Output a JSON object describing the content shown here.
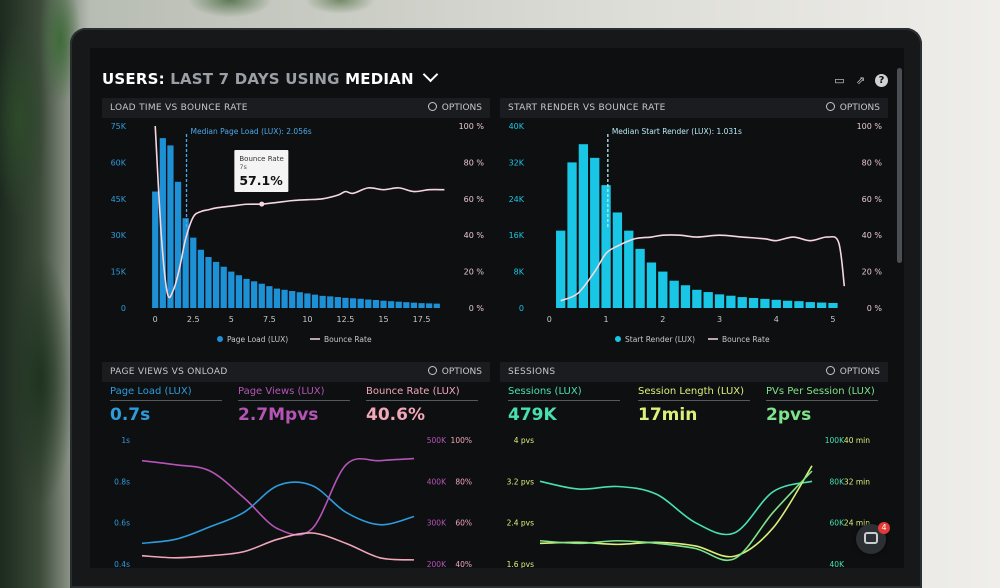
{
  "header": {
    "prefix": "USERS:",
    "range": "LAST 7 DAYS",
    "using": "USING",
    "stat": "MEDIAN"
  },
  "options_label": "OPTIONS",
  "colors": {
    "bar": "#1e90d6",
    "bar_cyan": "#19c6e6",
    "bounce_line": "#f7d7df",
    "median_line": "#4aa8e8"
  },
  "panels": {
    "load_time": {
      "title": "LOAD TIME VS BOUNCE RATE",
      "median_label": "Median Page Load (LUX): 2.056s",
      "tooltip": {
        "title": "Bounce Rate",
        "sub": "7s",
        "value": "57.1%"
      },
      "legend": [
        "Page Load (LUX)",
        "Bounce Rate"
      ]
    },
    "start_render": {
      "title": "START RENDER VS BOUNCE RATE",
      "median_label": "Median Start Render (LUX): 1.031s",
      "legend": [
        "Start Render (LUX)",
        "Bounce Rate"
      ]
    },
    "page_views": {
      "title": "PAGE VIEWS VS ONLOAD",
      "metrics": [
        {
          "label": "Page Load (LUX)",
          "value": "0.7s",
          "color": "#2d9cdb"
        },
        {
          "label": "Page Views (LUX)",
          "value": "2.7Mpvs",
          "color": "#b455b6"
        },
        {
          "label": "Bounce Rate (LUX)",
          "value": "40.6%",
          "color": "#f2a7b8"
        }
      ]
    },
    "sessions": {
      "title": "SESSIONS",
      "metrics": [
        {
          "label": "Sessions (LUX)",
          "value": "479K",
          "color": "#48e0b0"
        },
        {
          "label": "Session Length (LUX)",
          "value": "17min",
          "color": "#d9f07a"
        },
        {
          "label": "PVs Per Session (LUX)",
          "value": "2pvs",
          "color": "#7ee38a"
        }
      ]
    }
  },
  "chart_data": [
    {
      "type": "bar",
      "title": "LOAD TIME VS BOUNCE RATE",
      "x_ticks": [
        "0",
        "2.5",
        "5",
        "7.5",
        "10",
        "12.5",
        "15",
        "17.5"
      ],
      "y_ticks": [
        "0",
        "15K",
        "30K",
        "45K",
        "60K",
        "75K"
      ],
      "y2_ticks": [
        "0 %",
        "20 %",
        "40 %",
        "60 %",
        "80 %",
        "100 %"
      ],
      "ylim": [
        0,
        75000
      ],
      "y2lim": [
        0,
        100
      ],
      "xlim": [
        -1,
        19.5
      ],
      "series": [
        {
          "name": "Page Load (LUX)",
          "type": "bar",
          "x": [
            0,
            0.5,
            1,
            1.5,
            2,
            2.5,
            3,
            3.5,
            4,
            4.5,
            5,
            5.5,
            6,
            6.5,
            7,
            7.5,
            8,
            8.5,
            9,
            9.5,
            10,
            10.5,
            11,
            11.5,
            12,
            12.5,
            13,
            13.5,
            14,
            14.5,
            15,
            15.5,
            16,
            16.5,
            17,
            17.5,
            18,
            18.5
          ],
          "values": [
            48000,
            70000,
            67000,
            52000,
            37000,
            29000,
            24000,
            21000,
            19000,
            17000,
            15000,
            13500,
            12000,
            11000,
            10000,
            9000,
            8000,
            7500,
            7000,
            6500,
            6000,
            5500,
            5000,
            4800,
            4500,
            4200,
            4000,
            3800,
            3500,
            3300,
            3000,
            2800,
            2600,
            2400,
            2200,
            2000,
            1900,
            1800
          ]
        },
        {
          "name": "Bounce Rate",
          "type": "line",
          "axis": "y2",
          "x": [
            0,
            0.4,
            0.8,
            1.2,
            1.6,
            2,
            2.5,
            3,
            3.5,
            4,
            5,
            6,
            7,
            8,
            9,
            10,
            11,
            12,
            12.5,
            13,
            14,
            15,
            16,
            17,
            18,
            19
          ],
          "values": [
            100,
            40,
            8,
            10,
            22,
            38,
            50,
            53,
            54,
            55,
            56,
            57,
            57.1,
            58,
            59,
            59.5,
            60,
            62,
            64,
            63,
            66,
            65,
            66,
            64,
            65,
            65
          ]
        }
      ]
    },
    {
      "type": "bar",
      "title": "START RENDER VS BOUNCE RATE",
      "x_ticks": [
        "0",
        "1",
        "2",
        "3",
        "4",
        "5"
      ],
      "y_ticks": [
        "0",
        "8K",
        "16K",
        "24K",
        "32K",
        "40K"
      ],
      "y2_ticks": [
        "0 %",
        "20 %",
        "40 %",
        "60 %",
        "80 %",
        "100 %"
      ],
      "ylim": [
        0,
        40000
      ],
      "y2lim": [
        0,
        100
      ],
      "xlim": [
        -0.2,
        5.3
      ],
      "series": [
        {
          "name": "Start Render (LUX)",
          "type": "bar",
          "x": [
            0.2,
            0.4,
            0.6,
            0.8,
            1.0,
            1.2,
            1.4,
            1.6,
            1.8,
            2.0,
            2.2,
            2.4,
            2.6,
            2.8,
            3.0,
            3.2,
            3.4,
            3.6,
            3.8,
            4.0,
            4.2,
            4.4,
            4.6,
            4.8,
            5.0
          ],
          "values": [
            17000,
            32000,
            36000,
            33000,
            27000,
            21000,
            17000,
            13000,
            10000,
            8000,
            6000,
            5000,
            4000,
            3500,
            3000,
            2700,
            2400,
            2200,
            2000,
            1800,
            1600,
            1500,
            1300,
            1200,
            1100
          ]
        },
        {
          "name": "Bounce Rate",
          "type": "line",
          "axis": "y2",
          "x": [
            0.2,
            0.5,
            0.8,
            1.0,
            1.2,
            1.5,
            1.8,
            2.0,
            2.3,
            2.6,
            3.0,
            3.4,
            3.8,
            4.0,
            4.3,
            4.6,
            4.9,
            5.1,
            5.2
          ],
          "values": [
            4,
            8,
            20,
            30,
            34,
            38,
            39,
            40,
            40,
            39,
            40,
            39,
            38,
            37,
            39,
            37,
            39,
            36,
            12
          ]
        }
      ]
    },
    {
      "type": "line",
      "title": "PAGE VIEWS VS ONLOAD",
      "y_ticks": [
        "0.4s",
        "0.6s",
        "0.8s",
        "1s"
      ],
      "y2_ticks": [
        "200K",
        "300K",
        "400K",
        "500K"
      ],
      "y3_ticks": [
        "40%",
        "60%",
        "80%",
        "100%"
      ],
      "ylim": [
        0.4,
        1.0
      ],
      "x": [
        0,
        1,
        2,
        3,
        4,
        5,
        6,
        7,
        8
      ],
      "series": [
        {
          "name": "Page Load (LUX)",
          "values": [
            0.5,
            0.52,
            0.58,
            0.65,
            0.78,
            0.78,
            0.65,
            0.59,
            0.63
          ]
        },
        {
          "name": "Page Views (LUX)",
          "values": [
            0.9,
            0.88,
            0.85,
            0.72,
            0.57,
            0.57,
            0.88,
            0.9,
            0.91
          ]
        },
        {
          "name": "Bounce Rate (LUX)",
          "values": [
            0.44,
            0.43,
            0.44,
            0.46,
            0.52,
            0.55,
            0.5,
            0.43,
            0.42
          ]
        }
      ]
    },
    {
      "type": "line",
      "title": "SESSIONS",
      "y_ticks": [
        "1.6 pvs",
        "2.4 pvs",
        "3.2 pvs",
        "4 pvs"
      ],
      "y2_ticks": [
        "40K",
        "60K",
        "80K",
        "100K"
      ],
      "y3_ticks": [
        "24 min",
        "32 min",
        "40 min"
      ],
      "ylim": [
        1.6,
        4.0
      ],
      "x": [
        0,
        1,
        2,
        3,
        4,
        5,
        6,
        7
      ],
      "series": [
        {
          "name": "Sessions (LUX)",
          "values": [
            3.2,
            3.05,
            3.1,
            2.95,
            2.4,
            2.2,
            3.0,
            3.2
          ]
        },
        {
          "name": "Session Length (LUX)",
          "values": [
            2.0,
            2.02,
            1.98,
            2.02,
            1.95,
            1.75,
            2.3,
            3.5
          ]
        },
        {
          "name": "PVs Per Session (LUX)",
          "values": [
            2.05,
            2.0,
            2.05,
            2.0,
            1.9,
            1.7,
            2.6,
            3.4
          ]
        }
      ]
    }
  ]
}
